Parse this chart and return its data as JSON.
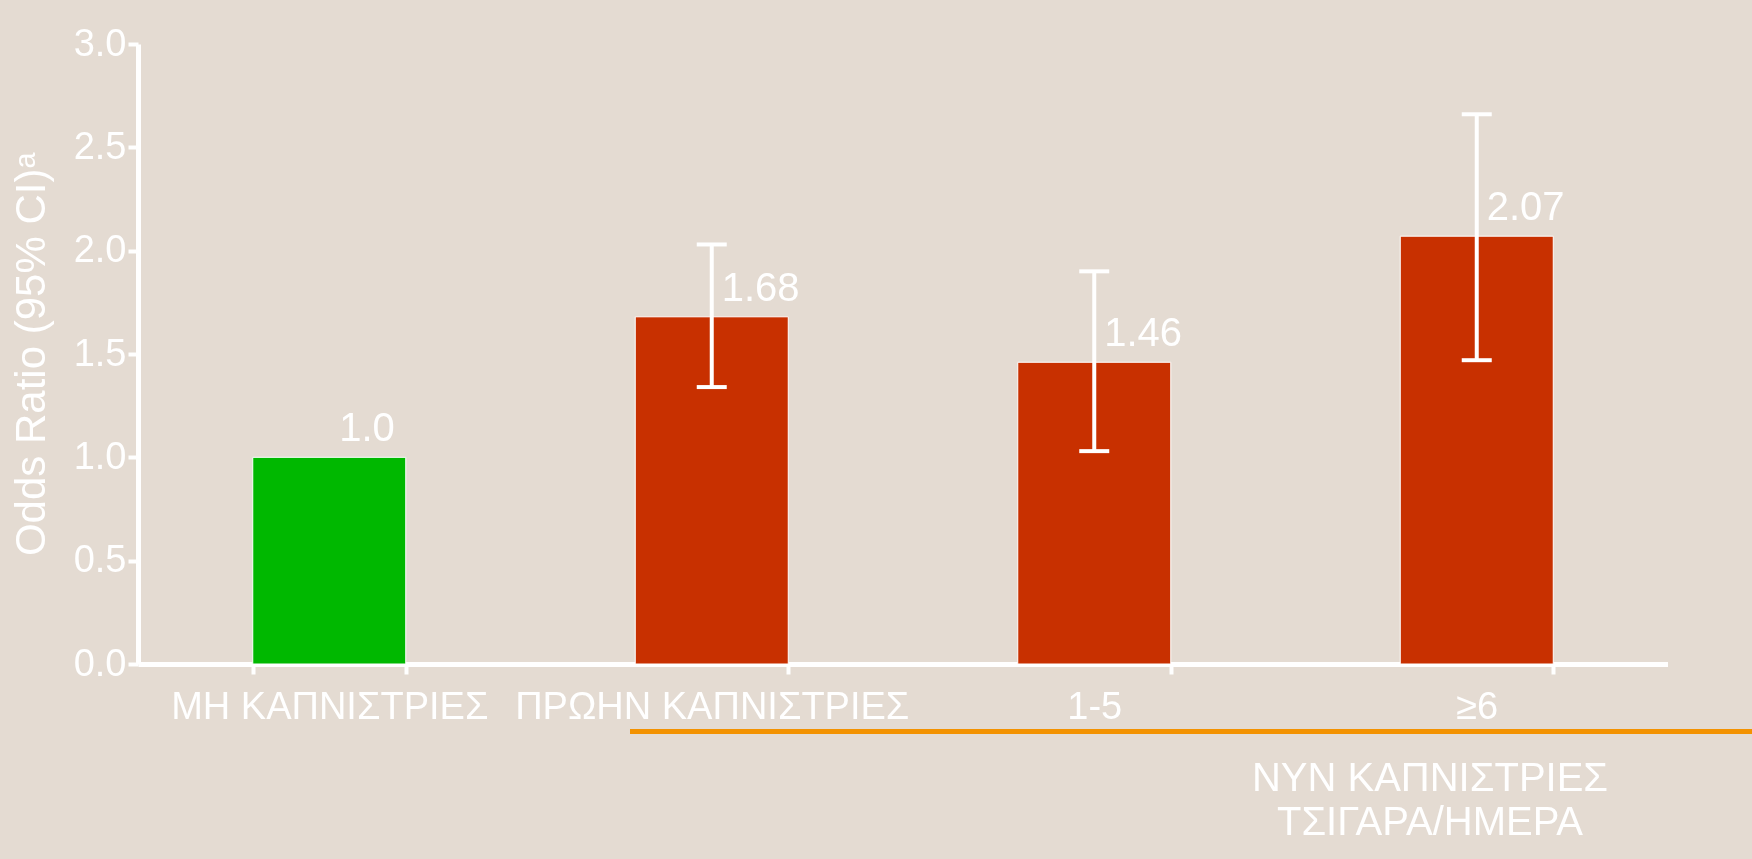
{
  "chart_data": {
    "type": "bar",
    "ylabel": "Odds Ratio (95% CI)ᵃ",
    "categories": [
      "ΜΗ ΚΑΠΝΙΣΤΡΙΕΣ",
      "ΠΡΩΗΝ ΚΑΠΝΙΣΤΡΙΕΣ",
      "1-5",
      "≥6"
    ],
    "values": [
      1.0,
      1.68,
      1.46,
      2.07
    ],
    "colors": [
      "#00b800",
      "#c83000",
      "#c83000",
      "#c83000"
    ],
    "errors": [
      null,
      [
        1.34,
        2.03
      ],
      [
        1.03,
        1.9
      ],
      [
        1.47,
        2.66
      ]
    ],
    "value_labels": [
      "1.0",
      "1.68",
      "1.46",
      "2.07"
    ],
    "ylim": [
      0,
      3
    ],
    "yticks": [
      {
        "value": 0,
        "label": "0.0"
      },
      {
        "value": 0.5,
        "label": "0.5"
      },
      {
        "value": 1,
        "label": "1.0"
      },
      {
        "value": 1.5,
        "label": "1.5"
      },
      {
        "value": 2,
        "label": "2.0"
      },
      {
        "value": 2.5,
        "label": "2.5"
      },
      {
        "value": 3,
        "label": "3.0"
      }
    ],
    "grid": false,
    "annotations": [
      "ΝΥΝ ΚΑΠΝΙΣΤΡΙΕΣ",
      "ΤΣΙΓΑΡΑ/ΗΜΕΡΑ"
    ]
  }
}
